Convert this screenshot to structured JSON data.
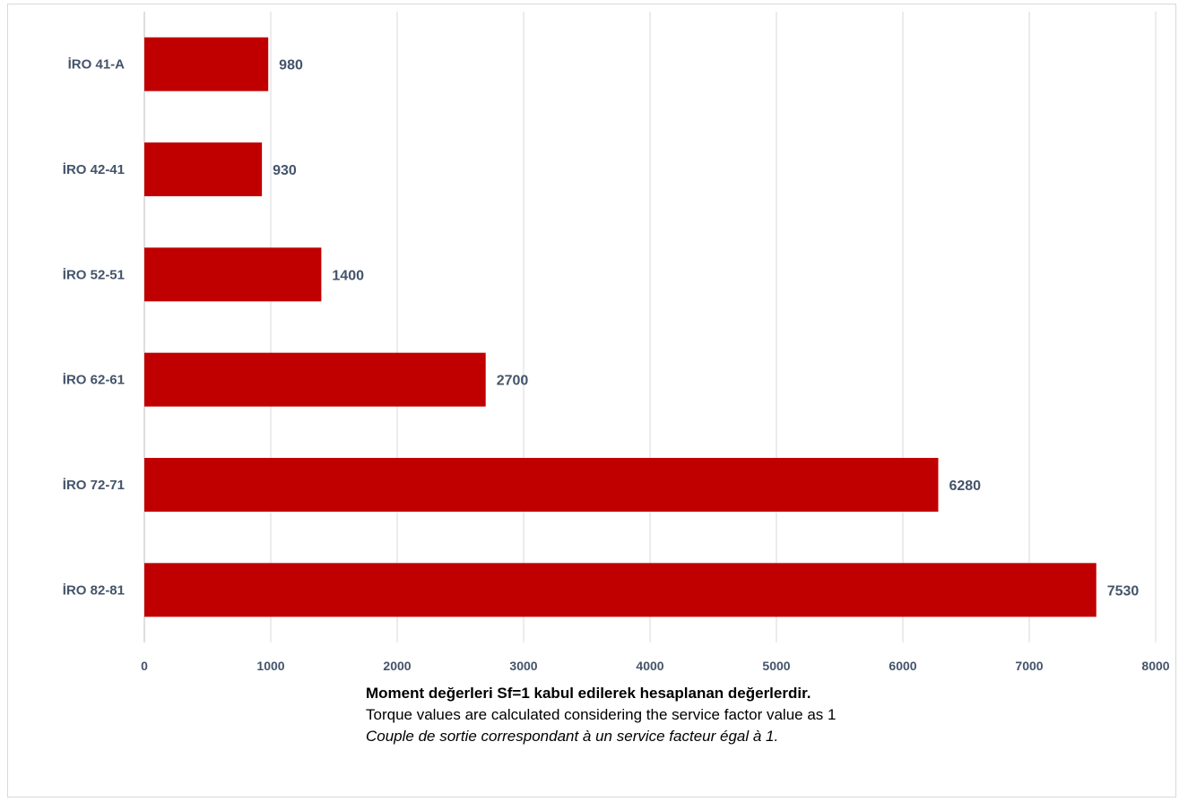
{
  "colors": {
    "bar": "#c00000",
    "label_text": "#44546a",
    "gridline": "#d9d9d9",
    "axis_line": "#bfbfbf"
  },
  "chart_data": {
    "type": "bar",
    "orientation": "horizontal",
    "categories": [
      "İRO 41-A",
      "İRO 42-41",
      "İRO 52-51",
      "İRO 62-61",
      "İRO 72-71",
      "İRO 82-81"
    ],
    "values": [
      980,
      930,
      1400,
      2700,
      6280,
      7530
    ],
    "data_labels": [
      "980",
      "930",
      "1400",
      "2700",
      "6280",
      "7530"
    ],
    "x_ticks": [
      "0",
      "1000",
      "2000",
      "3000",
      "4000",
      "5000",
      "6000",
      "7000",
      "8000"
    ],
    "xlim": [
      0,
      8000
    ],
    "grid": true,
    "legend": false,
    "title": "",
    "xlabel": "",
    "ylabel": ""
  },
  "notes": {
    "turkish": "Moment değerleri Sf=1 kabul edilerek hesaplanan değerlerdir.",
    "english": "Torque values are calculated considering the service factor value as 1",
    "french": "Couple de sortie correspondant à un service facteur égal à 1."
  }
}
